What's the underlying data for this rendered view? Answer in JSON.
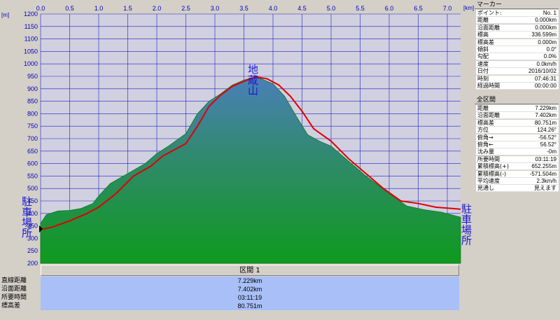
{
  "chart_data": {
    "type": "area",
    "x_unit": "[km]",
    "y_unit": "[m]",
    "xlim": [
      0,
      7.229
    ],
    "ylim": [
      200,
      1200
    ],
    "x_ticks": [
      "0.0",
      "0.5",
      "1.0",
      "1.5",
      "2.0",
      "2.5",
      "3.0",
      "3.5",
      "4.0",
      "4.5",
      "5.0",
      "5.5",
      "6.0",
      "6.5",
      "7.0"
    ],
    "y_ticks": [
      "200",
      "250",
      "300",
      "350",
      "400",
      "450",
      "500",
      "550",
      "600",
      "650",
      "700",
      "750",
      "800",
      "850",
      "900",
      "950",
      "1000",
      "1050",
      "1100",
      "1150",
      "1200"
    ],
    "grid": true,
    "colors": {
      "terrain_top": "#4a7fb8",
      "terrain_bottom": "#0e9a1e",
      "track": "#e00000",
      "plot_bg": "#d0d0e0",
      "grid": "#2020c0",
      "annotation": "#1a1ad0"
    },
    "series": [
      {
        "x": [
          0.0,
          0.1,
          0.3,
          0.5,
          0.7,
          0.9,
          1.0,
          1.2,
          1.5,
          1.8,
          2.0,
          2.2,
          2.5,
          2.7,
          2.9,
          3.1,
          3.3,
          3.5,
          3.65,
          3.8,
          4.0,
          4.2,
          4.4,
          4.6,
          4.8,
          5.0,
          5.3,
          5.6,
          6.0,
          6.3,
          6.6,
          6.9,
          7.229
        ],
        "y": [
          360,
          395,
          410,
          412,
          420,
          440,
          470,
          520,
          560,
          600,
          640,
          670,
          720,
          800,
          850,
          880,
          915,
          935,
          945,
          940,
          920,
          870,
          790,
          715,
          690,
          670,
          610,
          550,
          480,
          430,
          415,
          405,
          385
        ]
      },
      {
        "x": [
          0.0,
          0.2,
          0.5,
          0.8,
          1.0,
          1.3,
          1.6,
          1.9,
          2.1,
          2.3,
          2.5,
          2.7,
          2.9,
          3.1,
          3.3,
          3.5,
          3.7,
          3.9,
          4.1,
          4.3,
          4.5,
          4.7,
          5.0,
          5.3,
          5.6,
          5.9,
          6.2,
          6.5,
          6.8,
          7.229
        ],
        "y": [
          336,
          345,
          370,
          400,
          425,
          480,
          550,
          590,
          630,
          655,
          680,
          750,
          830,
          875,
          910,
          930,
          948,
          940,
          915,
          870,
          810,
          740,
          690,
          620,
          560,
          500,
          450,
          440,
          425,
          417
        ]
      }
    ],
    "annotations": [
      {
        "text": "地蔵山",
        "x": 3.65,
        "y": 1000
      },
      {
        "text": "駐車場所",
        "x": 0.0,
        "y": 470
      },
      {
        "text": "駐車場所",
        "x": 7.229,
        "y": 440
      }
    ]
  },
  "section": {
    "title": "区間 1",
    "rows": [
      {
        "label": "直線距離",
        "value": "7.229km"
      },
      {
        "label": "沿面距離",
        "value": "7.402km"
      },
      {
        "label": "所要時間",
        "value": "03:11:19"
      },
      {
        "label": "標高差",
        "value": "80.751m"
      }
    ]
  },
  "panel": {
    "marker_title": "マーカー",
    "marker_rows": [
      {
        "label": "ポイント:",
        "value": "No. 1"
      },
      {
        "label": "距離",
        "value": "0.000km"
      },
      {
        "label": "沿面距離",
        "value": "0.000km"
      },
      {
        "label": "標高",
        "value": "336.599m"
      },
      {
        "label": "標高差",
        "value": "0.000m"
      },
      {
        "label": "傾斜",
        "value": "0.0°"
      },
      {
        "label": "勾配",
        "value": "0.0%"
      },
      {
        "label": "速度",
        "value": "0.0km/h"
      },
      {
        "label": "日付",
        "value": "2016/10/02"
      },
      {
        "label": "時刻",
        "value": "07:46:31"
      },
      {
        "label": "経過時間",
        "value": "00:00:00"
      }
    ],
    "total_title": "全区間",
    "total_rows": [
      {
        "label": "距離",
        "value": "7.229km"
      },
      {
        "label": "沿面距離",
        "value": "7.402km"
      },
      {
        "label": "標高差",
        "value": "80.751m"
      },
      {
        "label": "方位",
        "value": "124.26°"
      },
      {
        "label": "俯角→",
        "value": "-56.52°"
      },
      {
        "label": "俯角←",
        "value": "56.52°"
      },
      {
        "label": "沈み量",
        "value": "-0m"
      },
      {
        "label": "所要時間",
        "value": "03:11:19"
      },
      {
        "label": "累積標高(+)",
        "value": "652.255m"
      },
      {
        "label": "累積標高(-)",
        "value": "-571.504m"
      },
      {
        "label": "平均速度",
        "value": "2.3km/h"
      },
      {
        "label": "見通し",
        "value": "見えます"
      }
    ]
  }
}
